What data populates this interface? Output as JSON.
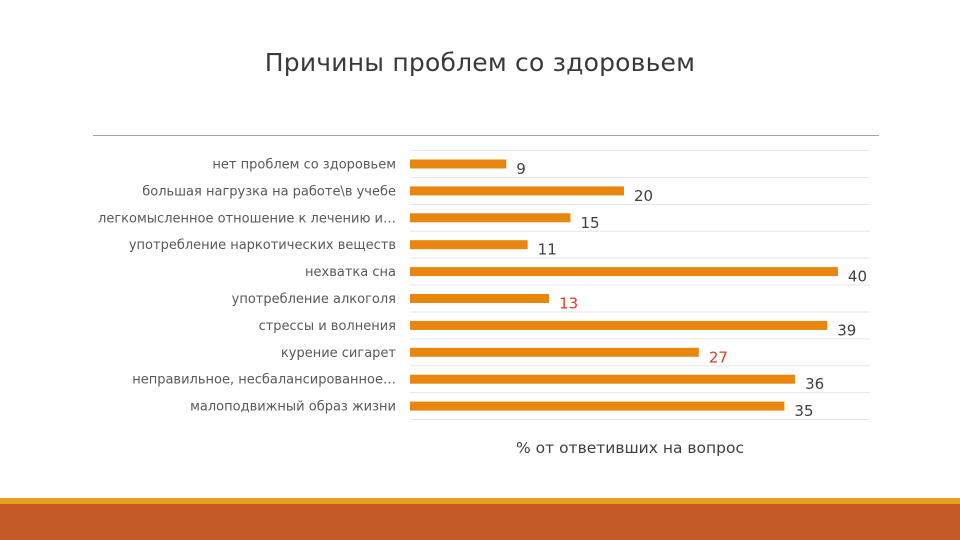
{
  "slide": {
    "title": "Причины проблем со здоровьем"
  },
  "colors": {
    "bar": "#e8860f",
    "label_default": "#404040",
    "label_highlight": "#e03c1e",
    "grid": "#e6e6e6",
    "footer_thin": "#e8a21a",
    "footer_bar": "#c45b27"
  },
  "chart_data": {
    "type": "bar",
    "orientation": "horizontal",
    "title": "",
    "xlabel": "% от ответивших на вопрос",
    "ylabel": "",
    "xlim": [
      0,
      43
    ],
    "grid": true,
    "legend": "none",
    "categories": [
      "нет проблем со здоровьем",
      "большая нагрузка на работе\\в учебе",
      "легкомысленное отношение к лечению и…",
      "употребление наркотических веществ",
      "нехватка сна",
      "употребление алкоголя",
      "стрессы и волнения",
      "курение сигарет",
      "неправильное, несбалансированное…",
      "малоподвижный образ жизни"
    ],
    "values": [
      9,
      20,
      15,
      11,
      40,
      13,
      39,
      27,
      36,
      35
    ],
    "highlighted_labels": [
      "употребление алкоголя",
      "курение сигарет"
    ]
  }
}
